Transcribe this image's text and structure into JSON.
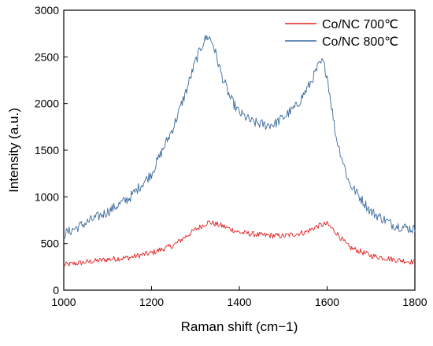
{
  "chart_data": {
    "type": "line",
    "title": "",
    "xlabel": "Raman shift (cm−1)",
    "ylabel": "Intensity (a.u.)",
    "xlim": [
      1000,
      1800
    ],
    "ylim": [
      0,
      3000
    ],
    "x_ticks": [
      1000,
      1200,
      1400,
      1600,
      1800
    ],
    "y_ticks": [
      0,
      500,
      1000,
      1500,
      2000,
      2500,
      3000
    ],
    "grid": false,
    "legend_position": "top-right",
    "series": [
      {
        "name": "Co/NC 700℃",
        "color": "#e0211f",
        "x": [
          1000,
          1050,
          1100,
          1150,
          1200,
          1250,
          1300,
          1330,
          1360,
          1400,
          1450,
          1500,
          1550,
          1580,
          1600,
          1620,
          1650,
          1700,
          1750,
          1800
        ],
        "y": [
          270,
          300,
          330,
          350,
          400,
          480,
          650,
          730,
          690,
          620,
          590,
          580,
          620,
          690,
          710,
          620,
          460,
          370,
          330,
          300
        ]
      },
      {
        "name": "Co/NC 800℃",
        "color": "#3b6a9c",
        "x": [
          1000,
          1050,
          1100,
          1150,
          1200,
          1250,
          1280,
          1300,
          1320,
          1330,
          1340,
          1360,
          1380,
          1400,
          1430,
          1460,
          1480,
          1500,
          1530,
          1560,
          1580,
          1590,
          1600,
          1620,
          1650,
          1700,
          1750,
          1800
        ],
        "y": [
          600,
          720,
          840,
          990,
          1250,
          1750,
          2150,
          2450,
          2680,
          2720,
          2640,
          2300,
          2050,
          1900,
          1800,
          1770,
          1780,
          1850,
          1970,
          2200,
          2400,
          2450,
          2300,
          1650,
          1150,
          840,
          700,
          650
        ]
      }
    ]
  }
}
